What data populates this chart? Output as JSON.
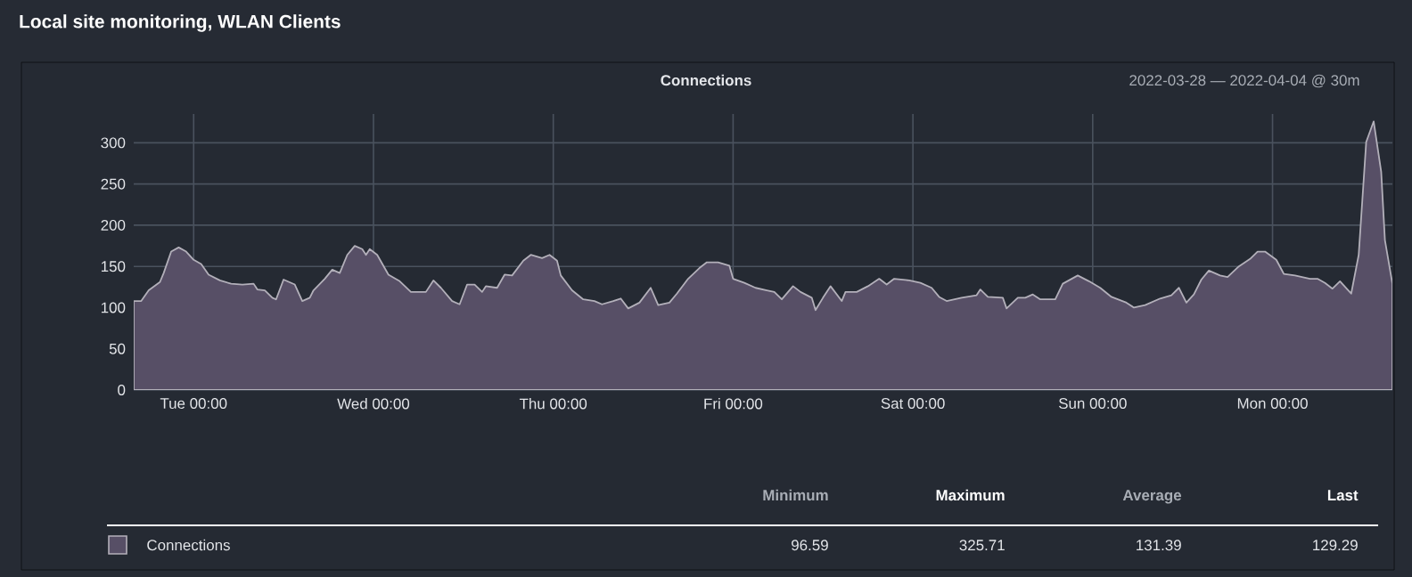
{
  "chart_data": {
    "type": "area",
    "title": "Local site monitoring, WLAN Clients",
    "subtitle": "Connections",
    "annotations": [
      "2022-03-28 — 2022-04-04 @ 30m",
      "Minimum",
      "Maximum",
      "Average",
      "Last",
      "96.59",
      "325.71",
      "131.39",
      "129.29"
    ],
    "xlim": [
      "2022-03-28T16:00",
      "2022-04-04T16:00"
    ],
    "xticks": [
      {
        "value": "2022-03-29T00:00",
        "label": "Tue 00:00"
      },
      {
        "value": "2022-03-30T00:00",
        "label": "Wed 00:00"
      },
      {
        "value": "2022-03-31T00:00",
        "label": "Thu 00:00"
      },
      {
        "value": "2022-04-01T00:00",
        "label": "Fri 00:00"
      },
      {
        "value": "2022-04-02T00:00",
        "label": "Sat 00:00"
      },
      {
        "value": "2022-04-03T00:00",
        "label": "Sun 00:00"
      },
      {
        "value": "2022-04-04T00:00",
        "label": "Mon 00:00"
      }
    ],
    "ylim": [
      0,
      335
    ],
    "yticks": [
      0,
      50,
      100,
      150,
      200,
      250,
      300
    ],
    "grid": true,
    "legend": "bottom",
    "series": [
      {
        "name": "Connections",
        "color": "#574f66",
        "x": [
          "2022-03-28T16:00",
          "2022-03-28T17:00",
          "2022-03-28T18:00",
          "2022-03-28T19:30",
          "2022-03-28T20:00",
          "2022-03-28T21:00",
          "2022-03-28T22:00",
          "2022-03-28T23:00",
          "2022-03-29T00:00",
          "2022-03-29T01:00",
          "2022-03-29T02:00",
          "2022-03-29T03:30",
          "2022-03-29T05:00",
          "2022-03-29T06:30",
          "2022-03-29T08:00",
          "2022-03-29T08:30",
          "2022-03-29T09:30",
          "2022-03-29T10:30",
          "2022-03-29T11:00",
          "2022-03-29T12:00",
          "2022-03-29T13:30",
          "2022-03-29T14:30",
          "2022-03-29T15:30",
          "2022-03-29T16:00",
          "2022-03-29T17:30",
          "2022-03-29T18:30",
          "2022-03-29T19:30",
          "2022-03-29T20:30",
          "2022-03-29T21:30",
          "2022-03-29T22:30",
          "2022-03-29T23:00",
          "2022-03-29T23:30",
          "2022-03-30T00:30",
          "2022-03-30T02:00",
          "2022-03-30T03:30",
          "2022-03-30T05:00",
          "2022-03-30T07:00",
          "2022-03-30T08:00",
          "2022-03-30T09:00",
          "2022-03-30T10:30",
          "2022-03-30T11:30",
          "2022-03-30T12:30",
          "2022-03-30T13:30",
          "2022-03-30T14:30",
          "2022-03-30T15:00",
          "2022-03-30T16:30",
          "2022-03-30T17:30",
          "2022-03-30T18:30",
          "2022-03-30T20:00",
          "2022-03-30T21:00",
          "2022-03-30T22:30",
          "2022-03-30T23:30",
          "2022-03-31T00:30",
          "2022-03-31T01:00",
          "2022-03-31T02:30",
          "2022-03-31T04:00",
          "2022-03-31T05:30",
          "2022-03-31T06:30",
          "2022-03-31T08:00",
          "2022-03-31T09:00",
          "2022-03-31T10:00",
          "2022-03-31T11:30",
          "2022-03-31T13:00",
          "2022-03-31T14:00",
          "2022-03-31T15:30",
          "2022-03-31T16:30",
          "2022-03-31T18:00",
          "2022-03-31T19:30",
          "2022-03-31T20:30",
          "2022-03-31T22:00",
          "2022-03-31T23:30",
          "2022-04-01T00:00",
          "2022-04-01T01:30",
          "2022-04-01T03:00",
          "2022-04-01T04:30",
          "2022-04-01T05:30",
          "2022-04-01T06:30",
          "2022-04-01T08:00",
          "2022-04-01T09:00",
          "2022-04-01T10:30",
          "2022-04-01T11:00",
          "2022-04-01T12:00",
          "2022-04-01T13:00",
          "2022-04-01T14:30",
          "2022-04-01T15:00",
          "2022-04-01T16:30",
          "2022-04-01T18:00",
          "2022-04-01T19:30",
          "2022-04-01T20:30",
          "2022-04-01T21:30",
          "2022-04-01T23:30",
          "2022-04-02T01:00",
          "2022-04-02T02:30",
          "2022-04-02T03:30",
          "2022-04-02T04:30",
          "2022-04-02T06:30",
          "2022-04-02T08:30",
          "2022-04-02T09:00",
          "2022-04-02T10:00",
          "2022-04-02T12:00",
          "2022-04-02T12:30",
          "2022-04-02T14:00",
          "2022-04-02T15:00",
          "2022-04-02T16:00",
          "2022-04-02T17:00",
          "2022-04-02T19:00",
          "2022-04-02T20:00",
          "2022-04-02T22:00",
          "2022-04-02T23:30",
          "2022-04-03T01:00",
          "2022-04-03T02:30",
          "2022-04-03T04:30",
          "2022-04-03T05:30",
          "2022-04-03T07:00",
          "2022-04-03T09:00",
          "2022-04-03T10:30",
          "2022-04-03T11:30",
          "2022-04-03T12:30",
          "2022-04-03T13:30",
          "2022-04-03T14:30",
          "2022-04-03T15:30",
          "2022-04-03T17:00",
          "2022-04-03T18:00",
          "2022-04-03T19:30",
          "2022-04-03T21:00",
          "2022-04-03T22:00",
          "2022-04-03T23:00",
          "2022-04-04T00:30",
          "2022-04-04T01:30",
          "2022-04-04T03:00",
          "2022-04-04T05:00",
          "2022-04-04T06:00",
          "2022-04-04T07:00",
          "2022-04-04T08:00",
          "2022-04-04T09:00",
          "2022-04-04T10:00",
          "2022-04-04T10:30",
          "2022-04-04T11:30",
          "2022-04-04T12:30",
          "2022-04-04T13:30",
          "2022-04-04T14:30",
          "2022-04-04T15:00",
          "2022-04-04T16:00"
        ],
        "values": [
          108,
          108,
          121,
          131,
          142,
          168,
          173,
          168,
          158,
          153,
          140,
          133,
          129,
          128,
          129,
          122,
          121,
          112,
          110,
          134,
          128,
          108,
          112,
          121,
          135,
          146,
          142,
          164,
          175,
          171,
          164,
          171,
          164,
          140,
          132,
          119,
          119,
          133,
          124,
          108,
          104,
          128,
          128,
          119,
          126,
          124,
          140,
          139,
          157,
          164,
          160,
          164,
          157,
          139,
          121,
          110,
          108,
          104,
          108,
          111,
          99,
          106,
          124,
          103,
          106,
          117,
          135,
          148,
          155,
          155,
          151,
          135,
          130,
          124,
          121,
          119,
          110,
          126,
          119,
          112,
          97,
          112,
          126,
          108,
          119,
          119,
          126,
          135,
          128,
          135,
          133,
          130,
          124,
          113,
          108,
          112,
          115,
          122,
          113,
          112,
          99,
          112,
          112,
          116,
          110,
          110,
          129,
          139,
          132,
          124,
          113,
          106,
          100,
          103,
          111,
          115,
          124,
          106,
          116,
          134,
          145,
          139,
          137,
          150,
          159,
          168,
          168,
          158,
          141,
          139,
          135,
          135,
          130,
          123,
          132,
          122,
          117,
          164,
          301,
          326,
          265,
          182,
          129
        ]
      }
    ]
  }
}
